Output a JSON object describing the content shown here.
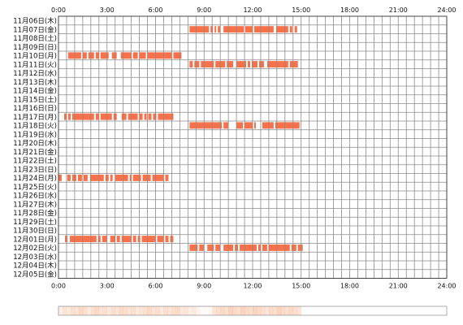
{
  "chart_data": {
    "type": "timeline",
    "x_unit": "hour of day",
    "xlim": [
      0,
      24
    ],
    "x_ticks": [
      "0:00",
      "3:00",
      "6:00",
      "9:00",
      "12:00",
      "15:00",
      "18:00",
      "21:00",
      "24:00"
    ],
    "rows": [
      {
        "label": "11月06日(木)",
        "segments": []
      },
      {
        "label": "11月07日(金)",
        "segments": [
          [
            8.1,
            9.3
          ],
          [
            9.4,
            9.55
          ],
          [
            9.65,
            9.75
          ],
          [
            9.85,
            10.0
          ],
          [
            10.2,
            11.45
          ],
          [
            11.55,
            12.0
          ],
          [
            12.1,
            13.3
          ],
          [
            13.45,
            14.2
          ],
          [
            14.3,
            14.45
          ],
          [
            14.6,
            14.75
          ]
        ]
      },
      {
        "label": "11月08日(土)",
        "segments": []
      },
      {
        "label": "11月09日(日)",
        "segments": []
      },
      {
        "label": "11月10日(月)",
        "segments": [
          [
            0.6,
            1.4
          ],
          [
            1.5,
            1.75
          ],
          [
            1.85,
            2.2
          ],
          [
            2.3,
            2.5
          ],
          [
            2.6,
            3.1
          ],
          [
            3.3,
            3.6
          ],
          [
            3.85,
            4.5
          ],
          [
            4.6,
            4.9
          ],
          [
            5.0,
            5.4
          ],
          [
            5.5,
            7.0
          ],
          [
            7.1,
            7.6
          ]
        ]
      },
      {
        "label": "11月11日(火)",
        "segments": [
          [
            8.1,
            8.3
          ],
          [
            8.4,
            8.7
          ],
          [
            8.8,
            9.6
          ],
          [
            9.7,
            10.3
          ],
          [
            10.4,
            10.8
          ],
          [
            11.0,
            11.6
          ],
          [
            11.7,
            11.85
          ],
          [
            11.95,
            12.3
          ],
          [
            12.4,
            12.7
          ],
          [
            12.9,
            14.2
          ],
          [
            14.3,
            14.8
          ]
        ]
      },
      {
        "label": "11月12日(水)",
        "segments": []
      },
      {
        "label": "11月13日(木)",
        "segments": []
      },
      {
        "label": "11月14日(金)",
        "segments": []
      },
      {
        "label": "11月15日(土)",
        "segments": []
      },
      {
        "label": "11月16日(日)",
        "segments": []
      },
      {
        "label": "11月17日(月)",
        "segments": [
          [
            0.35,
            0.5
          ],
          [
            0.6,
            0.75
          ],
          [
            0.85,
            2.2
          ],
          [
            2.3,
            2.5
          ],
          [
            2.6,
            3.3
          ],
          [
            3.4,
            3.6
          ],
          [
            3.9,
            4.2
          ],
          [
            4.3,
            4.9
          ],
          [
            5.0,
            5.2
          ],
          [
            5.3,
            5.45
          ],
          [
            5.55,
            5.75
          ],
          [
            5.85,
            6.05
          ],
          [
            6.15,
            7.1
          ]
        ]
      },
      {
        "label": "11月18日(火)",
        "segments": [
          [
            8.1,
            10.1
          ],
          [
            10.2,
            10.5
          ],
          [
            11.0,
            11.4
          ],
          [
            11.5,
            12.0
          ],
          [
            12.1,
            12.2
          ],
          [
            12.6,
            13.3
          ],
          [
            13.4,
            14.9
          ]
        ]
      },
      {
        "label": "11月19日(水)",
        "segments": []
      },
      {
        "label": "11月20日(木)",
        "segments": []
      },
      {
        "label": "11月21日(金)",
        "segments": []
      },
      {
        "label": "11月22日(土)",
        "segments": []
      },
      {
        "label": "11月23日(日)",
        "segments": []
      },
      {
        "label": "11月24日(月)",
        "segments": [
          [
            0.0,
            0.2
          ],
          [
            0.55,
            0.75
          ],
          [
            0.85,
            1.1
          ],
          [
            1.2,
            1.45
          ],
          [
            1.55,
            1.8
          ],
          [
            1.95,
            2.8
          ],
          [
            2.9,
            3.1
          ],
          [
            3.2,
            3.35
          ],
          [
            3.5,
            4.3
          ],
          [
            4.4,
            4.5
          ],
          [
            4.6,
            5.1
          ],
          [
            5.2,
            5.7
          ],
          [
            5.8,
            6.5
          ],
          [
            6.6,
            6.8
          ]
        ]
      },
      {
        "label": "11月25日(火)",
        "segments": []
      },
      {
        "label": "11月26日(水)",
        "segments": []
      },
      {
        "label": "11月27日(木)",
        "segments": []
      },
      {
        "label": "11月28日(金)",
        "segments": []
      },
      {
        "label": "11月29日(土)",
        "segments": []
      },
      {
        "label": "11月30日(日)",
        "segments": []
      },
      {
        "label": "12月01日(月)",
        "segments": [
          [
            0.4,
            0.55
          ],
          [
            0.7,
            2.35
          ],
          [
            2.45,
            2.6
          ],
          [
            2.7,
            3.0
          ],
          [
            3.2,
            3.5
          ],
          [
            3.6,
            3.8
          ],
          [
            3.9,
            4.5
          ],
          [
            4.6,
            4.8
          ],
          [
            4.9,
            5.05
          ],
          [
            5.15,
            6.0
          ],
          [
            6.1,
            6.5
          ],
          [
            6.6,
            6.8
          ],
          [
            6.9,
            7.1
          ]
        ]
      },
      {
        "label": "12月02日(火)",
        "segments": [
          [
            8.1,
            8.6
          ],
          [
            8.7,
            9.0
          ],
          [
            9.2,
            9.6
          ],
          [
            9.7,
            10.0
          ],
          [
            10.2,
            10.8
          ],
          [
            10.9,
            11.1
          ],
          [
            11.2,
            12.25
          ],
          [
            12.35,
            12.5
          ],
          [
            12.6,
            12.9
          ],
          [
            13.0,
            14.3
          ],
          [
            14.4,
            14.7
          ],
          [
            14.8,
            15.1
          ]
        ]
      },
      {
        "label": "12月03日(水)",
        "segments": []
      },
      {
        "label": "12月04日(木)",
        "segments": []
      },
      {
        "label": "12月05日(金)",
        "segments": []
      }
    ],
    "summary_band": {
      "description": "",
      "intensity_by_bin": [
        0.15,
        0.25,
        0.2,
        0.3,
        0.25,
        0.35,
        0.3,
        0.2,
        0.3,
        0.35,
        0.25,
        0.3,
        0.2,
        0.3,
        0.25,
        0.35,
        0.3,
        0.25,
        0.3,
        0.2,
        0.25,
        0.3,
        0.35,
        0.25,
        0.3,
        0.2,
        0.3,
        0.25,
        0.3,
        0.35,
        0.2,
        0.25,
        0.15,
        0.2,
        0.1,
        0.05,
        0.05,
        0.08,
        0.25,
        0.3,
        0.35,
        0.3,
        0.4,
        0.35,
        0.3,
        0.4,
        0.35,
        0.3,
        0.4,
        0.35,
        0.3,
        0.25,
        0.35,
        0.3,
        0.4,
        0.35,
        0.3,
        0.35,
        0.3,
        0.25,
        0,
        0,
        0,
        0,
        0,
        0,
        0,
        0,
        0,
        0,
        0,
        0,
        0,
        0,
        0,
        0,
        0,
        0,
        0,
        0,
        0,
        0,
        0,
        0,
        0,
        0,
        0,
        0,
        0,
        0,
        0,
        0,
        0,
        0,
        0,
        0
      ]
    },
    "grid": true,
    "x_ticks_positions": "top and bottom"
  },
  "colors": {
    "bar": "#fa7048",
    "bar_gap": "#ffd2b6",
    "grid": "#8a8a8a",
    "frame": "#444444",
    "band_fill": "#f4945e",
    "band_bg": "#ffffff",
    "band_border": "#999999"
  }
}
